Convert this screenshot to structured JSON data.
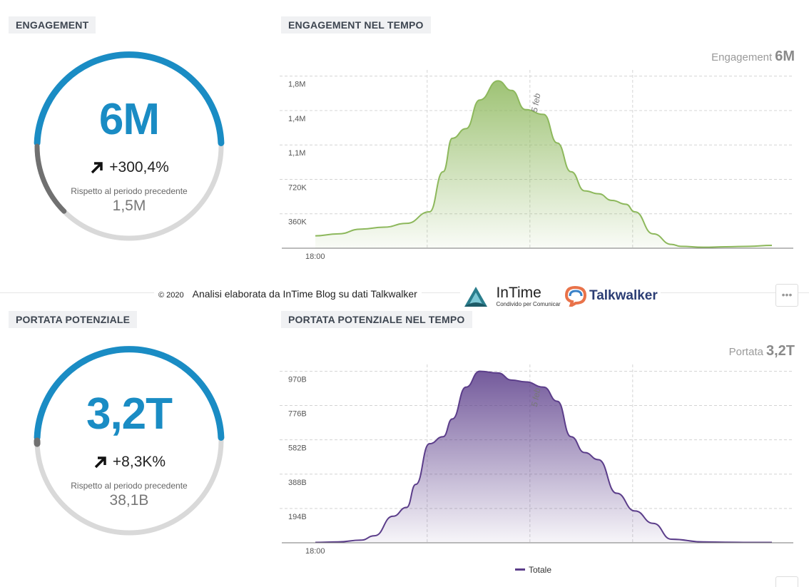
{
  "engagement": {
    "section_title": "ENGAGEMENT",
    "value": "6M",
    "delta": "+300,4%",
    "compare_label": "Rispetto al periodo precedente",
    "previous": "1,5M",
    "progress_fraction": 0.25
  },
  "engagement_chart": {
    "section_title": "ENGAGEMENT NEL TEMPO",
    "kpi_label": "Engagement",
    "kpi_value": "6M",
    "color": "#8db85c"
  },
  "reach": {
    "section_title": "PORTATA POTENZIALE",
    "value": "3,2T",
    "delta": "+8,3K%",
    "compare_label": "Rispetto al periodo precedente",
    "previous": "38,1B",
    "progress_fraction": 0.01
  },
  "reach_chart": {
    "section_title": "PORTATA POTENZIALE NEL TEMPO",
    "kpi_label": "Portata",
    "kpi_value": "3,2T",
    "color": "#5b3d8a",
    "legend": "Totale"
  },
  "footer": {
    "copyright": "© 2020",
    "text": "Analisi elaborata da InTime Blog su dati Talkwalker",
    "intime_name": "InTime",
    "intime_tagline": "Condivido per Comunicare",
    "talkwalker_name": "Talkwalker"
  },
  "colors": {
    "accent": "#1a8cc4",
    "gauge_track": "#d9d9d9",
    "gauge_prev": "#707070"
  },
  "chart_data": [
    {
      "type": "area",
      "title": "ENGAGEMENT NEL TEMPO",
      "x_tick_labels": [
        "18:00"
      ],
      "annotation": "5 feb",
      "y_tick_labels": [
        "360K",
        "720K",
        "1,1M",
        "1,4M",
        "1,8M"
      ],
      "y_ticks": [
        360000,
        720000,
        1080000,
        1440000,
        1800000
      ],
      "ylim": [
        0,
        1850000
      ],
      "x": [
        0,
        0.05,
        0.1,
        0.15,
        0.2,
        0.25,
        0.28,
        0.3,
        0.33,
        0.36,
        0.4,
        0.43,
        0.46,
        0.5,
        0.53,
        0.56,
        0.59,
        0.62,
        0.65,
        0.68,
        0.7,
        0.74,
        0.78,
        0.8,
        0.85,
        0.9,
        0.95,
        1.0
      ],
      "values": [
        130000,
        150000,
        200000,
        220000,
        260000,
        380000,
        800000,
        1150000,
        1250000,
        1550000,
        1750000,
        1650000,
        1450000,
        1400000,
        1100000,
        800000,
        600000,
        570000,
        500000,
        460000,
        380000,
        150000,
        40000,
        20000,
        10000,
        15000,
        20000,
        30000
      ],
      "grid": true,
      "legend": "none"
    },
    {
      "type": "area",
      "title": "PORTATA POTENZIALE NEL TEMPO",
      "x_tick_labels": [
        "18:00"
      ],
      "annotation": "5 feb",
      "y_tick_labels": [
        "194B",
        "388B",
        "582B",
        "776B",
        "970B"
      ],
      "y_ticks": [
        194,
        388,
        582,
        776,
        970
      ],
      "ylim": [
        0,
        1000
      ],
      "x": [
        0,
        0.05,
        0.1,
        0.13,
        0.17,
        0.2,
        0.22,
        0.25,
        0.28,
        0.3,
        0.33,
        0.36,
        0.4,
        0.43,
        0.46,
        0.5,
        0.53,
        0.56,
        0.59,
        0.62,
        0.66,
        0.7,
        0.74,
        0.78,
        0.85,
        0.9,
        0.95,
        1.0
      ],
      "values": [
        2,
        5,
        15,
        40,
        150,
        200,
        330,
        560,
        600,
        700,
        880,
        970,
        960,
        920,
        910,
        880,
        800,
        600,
        510,
        470,
        280,
        180,
        110,
        20,
        5,
        3,
        2,
        2
      ],
      "grid": true,
      "series": [
        {
          "name": "Totale",
          "values": "same as values"
        }
      ],
      "legend": "bottom"
    }
  ]
}
